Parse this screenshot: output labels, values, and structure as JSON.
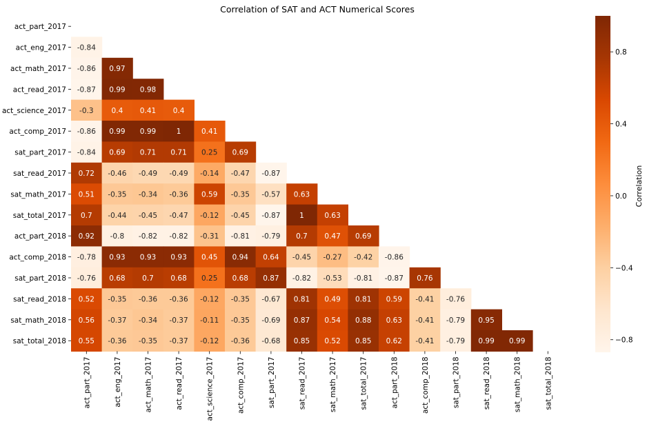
{
  "chart_data": {
    "type": "heatmap",
    "title": "Correlation of SAT and ACT Numerical Scores",
    "variables": [
      "act_part_2017",
      "act_eng_2017",
      "act_math_2017",
      "act_read_2017",
      "act_science_2017",
      "act_comp_2017",
      "sat_part_2017",
      "sat_read_2017",
      "sat_math_2017",
      "sat_total_2017",
      "act_part_2018",
      "act_comp_2018",
      "sat_part_2018",
      "sat_read_2018",
      "sat_math_2018",
      "sat_total_2018"
    ],
    "mask": "upper triangle including diagonal",
    "matrix_lower": [
      [],
      [
        -0.84
      ],
      [
        -0.86,
        0.97
      ],
      [
        -0.87,
        0.99,
        0.98
      ],
      [
        -0.3,
        0.4,
        0.41,
        0.4
      ],
      [
        -0.86,
        0.99,
        0.99,
        1,
        0.41
      ],
      [
        -0.84,
        0.69,
        0.71,
        0.71,
        0.25,
        0.69
      ],
      [
        0.72,
        -0.46,
        -0.49,
        -0.49,
        -0.14,
        -0.47,
        -0.87
      ],
      [
        0.51,
        -0.35,
        -0.34,
        -0.36,
        0.59,
        -0.35,
        -0.57,
        0.63
      ],
      [
        0.7,
        -0.44,
        -0.45,
        -0.47,
        -0.12,
        -0.45,
        -0.87,
        1,
        0.63
      ],
      [
        0.92,
        -0.8,
        -0.82,
        -0.82,
        -0.31,
        -0.81,
        -0.79,
        0.7,
        0.47,
        0.69
      ],
      [
        -0.78,
        0.93,
        0.93,
        0.93,
        0.45,
        0.94,
        0.64,
        -0.45,
        -0.27,
        -0.42,
        -0.86
      ],
      [
        -0.76,
        0.68,
        0.7,
        0.68,
        0.25,
        0.68,
        0.87,
        -0.82,
        -0.53,
        -0.81,
        -0.87,
        0.76
      ],
      [
        0.52,
        -0.35,
        -0.36,
        -0.36,
        -0.12,
        -0.35,
        -0.67,
        0.81,
        0.49,
        0.81,
        0.59,
        -0.41,
        -0.76
      ],
      [
        0.56,
        -0.37,
        -0.34,
        -0.37,
        -0.11,
        -0.35,
        -0.69,
        0.87,
        0.54,
        0.88,
        0.63,
        -0.41,
        -0.79,
        0.95
      ],
      [
        0.55,
        -0.36,
        -0.35,
        -0.37,
        -0.12,
        -0.36,
        -0.68,
        0.85,
        0.52,
        0.85,
        0.62,
        -0.41,
        -0.79,
        0.99,
        0.99
      ]
    ],
    "colorbar": {
      "label": "Correlation",
      "range": [
        -0.87,
        1.0
      ],
      "ticks": [
        0.8,
        0.4,
        0.0,
        -0.4,
        -0.8
      ],
      "tick_labels": [
        "0.8",
        "0.4",
        "0.0",
        "−0.4",
        "−0.8"
      ],
      "colormap": "Oranges",
      "colors": [
        "#fff5eb",
        "#fee6ce",
        "#fdd0a2",
        "#fdae6b",
        "#fd8d3c",
        "#f16913",
        "#d94801",
        "#a63603",
        "#7f2704"
      ]
    },
    "annotation_dark_text": "#262626",
    "annotation_light_text": "#ffffff"
  }
}
